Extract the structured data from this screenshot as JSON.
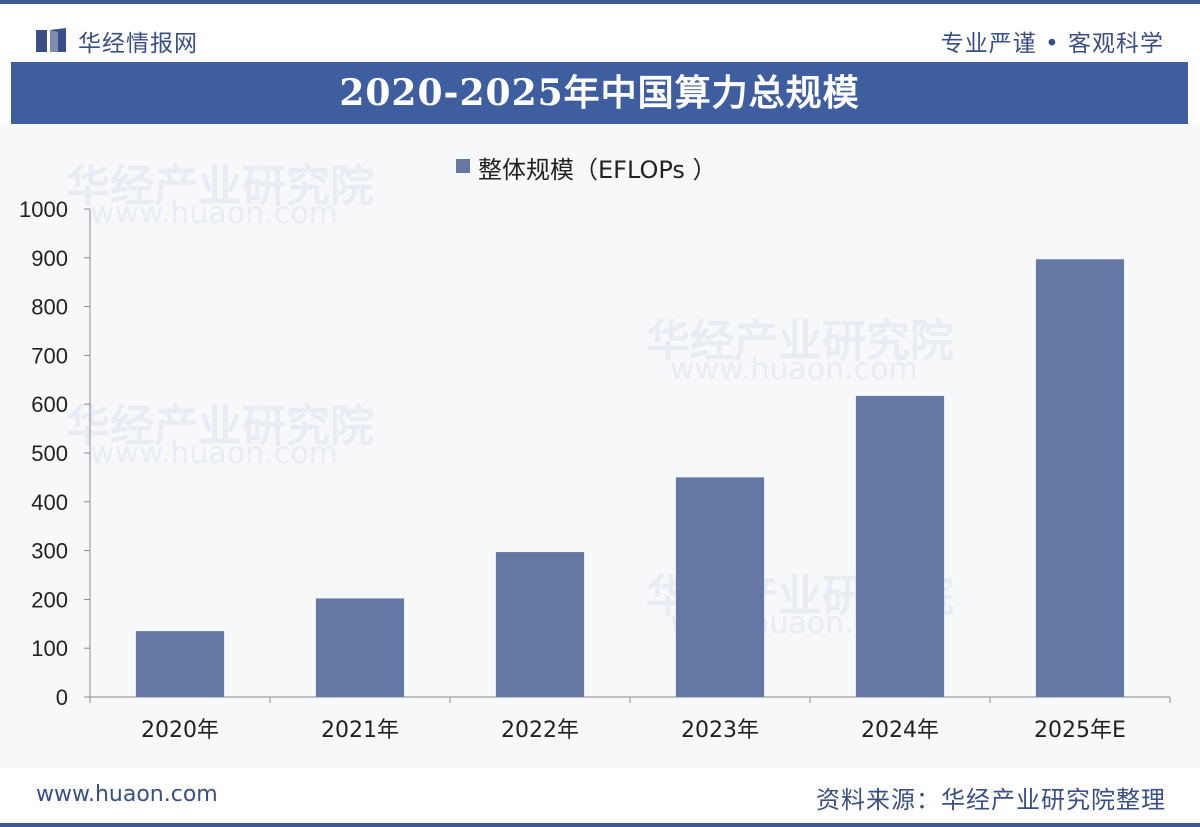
{
  "header": {
    "brand": "华经情报网",
    "motto": "专业严谨 • 客观科学"
  },
  "chart_data": {
    "type": "bar",
    "title": "2020-2025年中国算力总规模",
    "categories": [
      "2020年",
      "2021年",
      "2022年",
      "2023年",
      "2024年",
      "2025年E"
    ],
    "series": [
      {
        "name": "整体规模（EFLOPs ）",
        "values": [
          135,
          202,
          297,
          450,
          617,
          897
        ]
      }
    ],
    "ylim": [
      0,
      1000
    ],
    "yticks": [
      0,
      100,
      200,
      300,
      400,
      500,
      600,
      700,
      800,
      900,
      1000
    ],
    "xlabel": "",
    "ylabel": "",
    "grid": false,
    "legend_position": "top-center",
    "bar_color": "#6478a3"
  },
  "watermark": {
    "text": "华经产业研究院",
    "url": "www.huaon.com"
  },
  "footer": {
    "url": "www.huaon.com",
    "source": "资料来源：华经产业研究院整理"
  },
  "colors": {
    "brand": "#3a4f85",
    "title_band": "#3f5e9f",
    "bar": "#6478a3"
  }
}
